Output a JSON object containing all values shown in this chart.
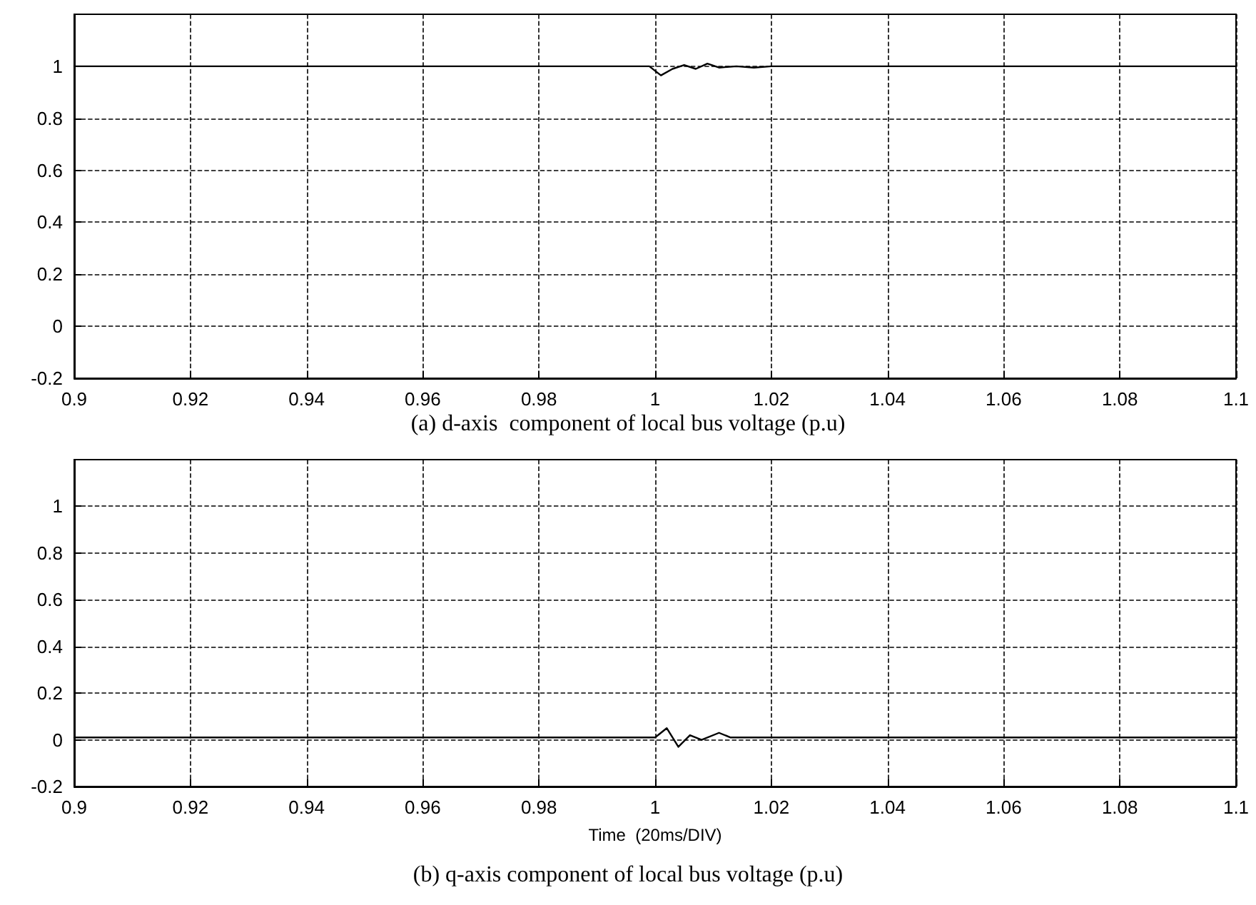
{
  "chart_data": [
    {
      "type": "line",
      "title": "(a) d-axis  component of local bus voltage (p.u)",
      "series": [
        {
          "color": "#000000",
          "x": [
            0.9,
            0.92,
            0.94,
            0.96,
            0.98,
            0.999,
            1.001,
            1.003,
            1.005,
            1.007,
            1.009,
            1.011,
            1.014,
            1.017,
            1.02,
            1.04,
            1.06,
            1.08,
            1.1
          ],
          "values": [
            1.0,
            1.0,
            1.0,
            1.0,
            1.0,
            1.0,
            0.965,
            0.99,
            1.005,
            0.99,
            1.01,
            0.995,
            1.0,
            0.995,
            1.0,
            1.0,
            1.0,
            1.0,
            1.0
          ]
        }
      ],
      "xlim": [
        0.9,
        1.1
      ],
      "xticks": [
        0.9,
        0.92,
        0.94,
        0.96,
        0.98,
        1,
        1.02,
        1.04,
        1.06,
        1.08,
        1.1
      ],
      "ylim": [
        -0.2,
        1.2
      ],
      "yticks": [
        -0.2,
        0,
        0.2,
        0.4,
        0.6,
        0.8,
        1
      ],
      "grid": true,
      "marker": "none",
      "line_style": "solid"
    },
    {
      "type": "line",
      "title": "(b) q-axis component of local bus voltage (p.u)",
      "xlabel": "Time  (20ms/DIV)",
      "series": [
        {
          "color": "#000000",
          "x": [
            0.9,
            0.91,
            0.92,
            0.93,
            0.94,
            0.95,
            0.96,
            0.97,
            0.98,
            0.99,
            1.0,
            1.002,
            1.004,
            1.006,
            1.008,
            1.011,
            1.013,
            1.02,
            1.03,
            1.04,
            1.05,
            1.06,
            1.07,
            1.08,
            1.09,
            1.1
          ],
          "values": [
            0.01,
            0.01,
            0.01,
            0.01,
            0.01,
            0.01,
            0.01,
            0.01,
            0.01,
            0.01,
            0.01,
            0.05,
            -0.03,
            0.02,
            0.0,
            0.03,
            0.01,
            0.01,
            0.01,
            0.01,
            0.01,
            0.01,
            0.01,
            0.01,
            0.01,
            0.01
          ]
        }
      ],
      "xlim": [
        0.9,
        1.1
      ],
      "xticks": [
        0.9,
        0.92,
        0.94,
        0.96,
        0.98,
        1,
        1.02,
        1.04,
        1.06,
        1.08,
        1.1
      ],
      "ylim": [
        -0.2,
        1.2
      ],
      "yticks": [
        -0.2,
        0,
        0.2,
        0.4,
        0.6,
        0.8,
        1
      ],
      "grid": true,
      "marker": "none",
      "line_style": "solid"
    }
  ]
}
